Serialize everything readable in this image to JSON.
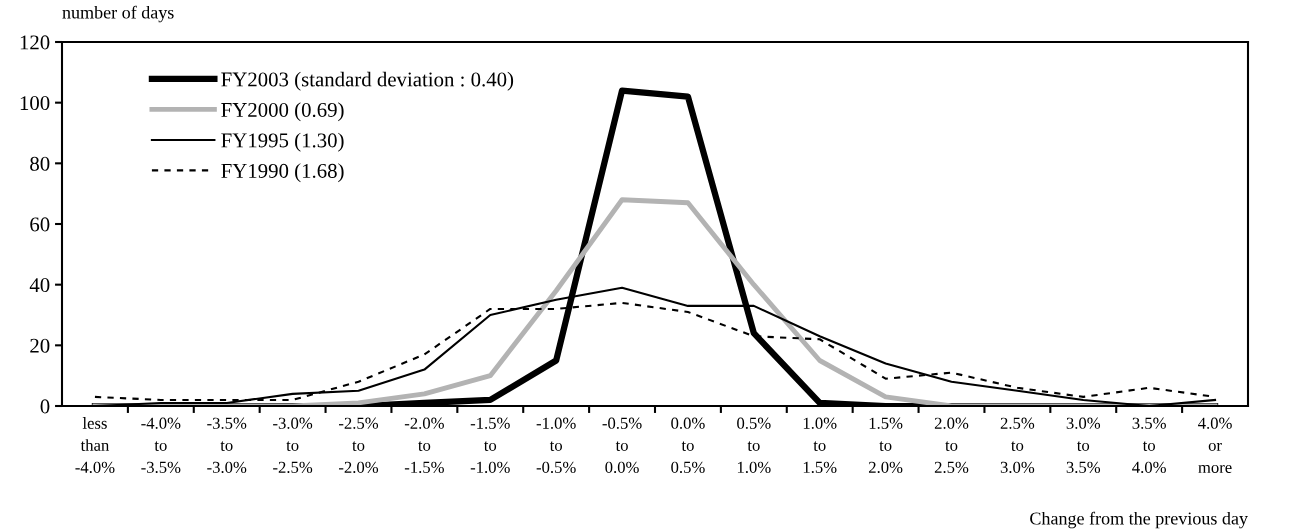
{
  "chart_data": {
    "type": "line",
    "ylabel": "number of days",
    "xlabel": "Change from the previous day",
    "categories": [
      "less\nthan\n-4.0%",
      "-4.0%\nto\n-3.5%",
      "-3.5%\nto\n-3.0%",
      "-3.0%\nto\n-2.5%",
      "-2.5%\nto\n-2.0%",
      "-2.0%\nto\n-1.5%",
      "-1.5%\nto\n-1.0%",
      "-1.0%\nto\n-0.5%",
      "-0.5%\nto\n0.0%",
      "0.0%\nto\n0.5%",
      "0.5%\nto\n1.0%",
      "1.0%\nto\n1.5%",
      "1.5%\nto\n2.0%",
      "2.0%\nto\n2.5%",
      "2.5%\nto\n3.0%",
      "3.0%\nto\n3.5%",
      "3.5%\nto\n4.0%",
      "4.0%\nor\nmore"
    ],
    "series": [
      {
        "name": "FY2003 (standard deviation : 0.40)",
        "color": "#000000",
        "line_style": "solid",
        "values": [
          0,
          0,
          0,
          0,
          0,
          1,
          2,
          15,
          104,
          102,
          24,
          1,
          0,
          0,
          0,
          0,
          0,
          0
        ]
      },
      {
        "name": "FY2000 (0.69)",
        "color": "#b3b3b3",
        "line_style": "solid",
        "values": [
          0,
          0,
          0,
          0,
          1,
          4,
          10,
          38,
          68,
          67,
          40,
          15,
          3,
          0,
          0,
          0,
          0,
          0
        ]
      },
      {
        "name": "FY1995 (1.30)",
        "color": "#000000",
        "line_style": "solid",
        "values": [
          0,
          1,
          1,
          4,
          5,
          12,
          30,
          35,
          39,
          33,
          33,
          23,
          14,
          8,
          5,
          2,
          0,
          2
        ]
      },
      {
        "name": "FY1990 (1.68)",
        "color": "#000000",
        "line_style": "dashed",
        "values": [
          3,
          2,
          2,
          2,
          8,
          17,
          32,
          32,
          34,
          31,
          23,
          22,
          9,
          11,
          6,
          3,
          6,
          3
        ]
      }
    ],
    "ylim": [
      0,
      120
    ],
    "yticks": [
      0,
      20,
      40,
      60,
      80,
      100,
      120
    ],
    "grid": false,
    "legend": "top left",
    "marker": "none"
  }
}
